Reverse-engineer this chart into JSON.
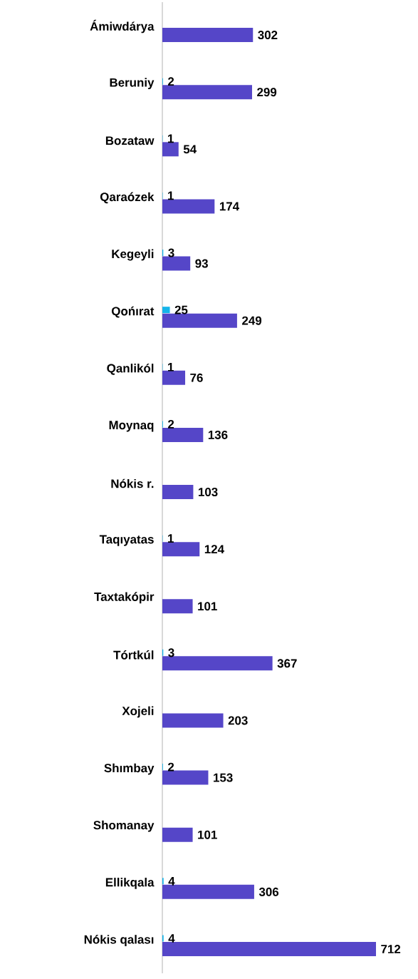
{
  "chart_data": {
    "type": "bar",
    "orientation": "horizontal",
    "data_labels": true,
    "categories": [
      "Ámiwdárya",
      "Beruniy",
      "Bozataw",
      "Qaraózek",
      "Kegeyli",
      "Qońırat",
      "Qanlikól",
      "Moynaq",
      "Nókis r.",
      "Taqıyatas",
      "Taxtakópir",
      "Tórtkúl",
      "Xojeli",
      "Shımbay",
      "Shomanay",
      "Ellikqala",
      "Nókis qalası"
    ],
    "series": [
      {
        "color": "#14b4ea",
        "values": [
          null,
          2,
          1,
          1,
          3,
          25,
          1,
          2,
          null,
          1,
          null,
          3,
          null,
          2,
          null,
          4,
          4
        ]
      },
      {
        "color": "#5546c8",
        "values": [
          302,
          299,
          54,
          174,
          93,
          249,
          76,
          136,
          103,
          124,
          101,
          367,
          203,
          153,
          101,
          306,
          712
        ]
      }
    ]
  }
}
